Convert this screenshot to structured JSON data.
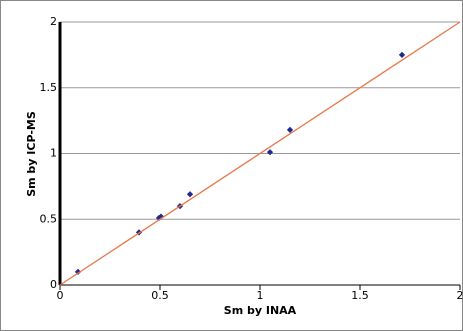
{
  "chart_data": {
    "type": "scatter",
    "x_label": "Sm by INAA",
    "y_label": "Sm by ICP-MS",
    "series": [
      {
        "color": "#1f2a8c",
        "mode": "markers",
        "x": [
          0.09,
          0.395,
          0.495,
          0.505,
          0.6,
          0.65,
          1.05,
          1.15,
          1.71
        ],
        "values": [
          0.1,
          0.4,
          0.51,
          0.52,
          0.6,
          0.69,
          1.01,
          1.18,
          1.75
        ]
      },
      {
        "color": "#e8784a",
        "mode": "line",
        "x": [
          0,
          2
        ],
        "values": [
          0,
          2
        ]
      }
    ],
    "xlim": [
      0,
      2
    ],
    "xticks": [
      0,
      0.5,
      1,
      1.5,
      2
    ],
    "ylim": [
      0,
      2
    ],
    "yticks": [
      0,
      0.5,
      1,
      1.5,
      2
    ],
    "grid": true
  }
}
